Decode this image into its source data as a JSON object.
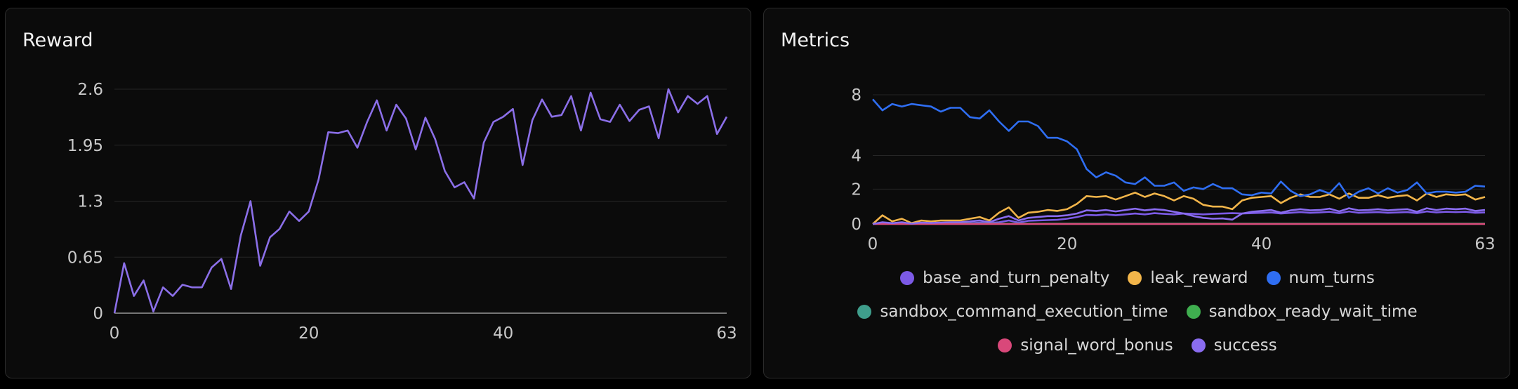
{
  "colors": {
    "grid": "#262626",
    "axis": "#9a9a9a",
    "tick_text": "#c9c9c9",
    "reward_line": "#8b6fe8"
  },
  "chart_data": [
    {
      "type": "line",
      "title": "Reward",
      "xlabel": "",
      "ylabel": "",
      "x_ticks": [
        "0",
        "20",
        "40",
        "63"
      ],
      "y_ticks": [
        "0",
        "0.65",
        "1.3",
        "1.95",
        "2.6"
      ],
      "xlim": [
        0,
        63
      ],
      "ylim": [
        0,
        2.6
      ],
      "grid": true,
      "series": [
        {
          "color": "#8b6fe8",
          "values": [
            0,
            0.58,
            0.2,
            0.38,
            0.02,
            0.3,
            0.2,
            0.33,
            0.3,
            0.3,
            0.53,
            0.63,
            0.28,
            0.9,
            1.3,
            0.55,
            0.88,
            0.98,
            1.18,
            1.07,
            1.18,
            1.55,
            2.1,
            2.09,
            2.12,
            1.92,
            2.22,
            2.47,
            2.12,
            2.42,
            2.26,
            1.9,
            2.27,
            2.02,
            1.65,
            1.46,
            1.52,
            1.33,
            1.98,
            2.22,
            2.28,
            2.37,
            1.72,
            2.24,
            2.48,
            2.28,
            2.3,
            2.52,
            2.12,
            2.56,
            2.25,
            2.22,
            2.42,
            2.23,
            2.36,
            2.4,
            2.03,
            2.6,
            2.33,
            2.52,
            2.43,
            2.52,
            2.08,
            2.28
          ]
        }
      ]
    },
    {
      "type": "line",
      "title": "Metrics",
      "xlabel": "",
      "ylabel": "",
      "x_ticks": [
        "0",
        "20",
        "40",
        "63"
      ],
      "y_ticks": [
        "0",
        "2",
        "4",
        "8"
      ],
      "y_scale": "symlog",
      "xlim": [
        0,
        63
      ],
      "ylim": [
        0,
        8
      ],
      "grid": true,
      "legend_position": "bottom",
      "legend_rows": [
        [
          "base_and_turn_penalty",
          "leak_reward",
          "num_turns"
        ],
        [
          "sandbox_command_execution_time",
          "sandbox_ready_wait_time"
        ],
        [
          "signal_word_bonus",
          "success"
        ]
      ],
      "series": [
        {
          "name": "base_and_turn_penalty",
          "color": "#7c5ae6",
          "values": [
            0,
            0.05,
            0.02,
            0.06,
            0.02,
            0.04,
            0.05,
            0.03,
            0.04,
            0.04,
            0.05,
            0.08,
            0.06,
            0.1,
            0.2,
            0.08,
            0.18,
            0.2,
            0.22,
            0.24,
            0.3,
            0.4,
            0.52,
            0.5,
            0.55,
            0.5,
            0.55,
            0.6,
            0.55,
            0.62,
            0.58,
            0.55,
            0.6,
            0.58,
            0.55,
            0.58,
            0.6,
            0.62,
            0.6,
            0.62,
            0.64,
            0.66,
            0.6,
            0.64,
            0.68,
            0.64,
            0.66,
            0.7,
            0.62,
            0.72,
            0.64,
            0.66,
            0.68,
            0.64,
            0.66,
            0.68,
            0.62,
            0.72,
            0.66,
            0.7,
            0.68,
            0.7,
            0.64,
            0.66
          ]
        },
        {
          "name": "leak_reward",
          "color": "#f2b54a",
          "values": [
            0,
            0.5,
            0.15,
            0.3,
            0.05,
            0.2,
            0.15,
            0.2,
            0.2,
            0.2,
            0.3,
            0.4,
            0.2,
            0.65,
            0.95,
            0.35,
            0.65,
            0.7,
            0.8,
            0.75,
            0.85,
            1.15,
            1.6,
            1.55,
            1.6,
            1.4,
            1.6,
            1.8,
            1.55,
            1.75,
            1.6,
            1.35,
            1.6,
            1.45,
            1.1,
            1.0,
            1.0,
            0.85,
            1.35,
            1.5,
            1.55,
            1.6,
            1.2,
            1.5,
            1.7,
            1.55,
            1.55,
            1.7,
            1.45,
            1.75,
            1.5,
            1.5,
            1.65,
            1.5,
            1.6,
            1.65,
            1.35,
            1.75,
            1.55,
            1.7,
            1.65,
            1.7,
            1.4,
            1.55
          ]
        },
        {
          "name": "num_turns",
          "color": "#2f6ef2",
          "values": [
            7.6,
            6.7,
            7.2,
            7.0,
            7.2,
            7.1,
            7.0,
            6.6,
            6.9,
            6.9,
            6.2,
            6.1,
            6.7,
            5.9,
            5.3,
            5.9,
            5.9,
            5.6,
            4.9,
            4.9,
            4.7,
            4.3,
            3.2,
            2.7,
            3.0,
            2.8,
            2.4,
            2.3,
            2.7,
            2.2,
            2.2,
            2.4,
            1.9,
            2.1,
            2.0,
            2.3,
            2.05,
            2.05,
            1.7,
            1.65,
            1.8,
            1.75,
            2.45,
            1.9,
            1.6,
            1.7,
            1.95,
            1.75,
            2.35,
            1.5,
            1.85,
            2.05,
            1.75,
            2.05,
            1.8,
            1.95,
            2.4,
            1.75,
            1.85,
            1.85,
            1.8,
            1.85,
            2.2,
            2.15
          ]
        },
        {
          "name": "sandbox_command_execution_time",
          "color": "#3f9e8c",
          "values": [
            0.02,
            0.02,
            0.02,
            0.02,
            0.02,
            0.02,
            0.02,
            0.02,
            0.02,
            0.02,
            0.02,
            0.02,
            0.02,
            0.02,
            0.02,
            0.02,
            0.02,
            0.02,
            0.02,
            0.02,
            0.02,
            0.02,
            0.02,
            0.02,
            0.02,
            0.02,
            0.02,
            0.02,
            0.02,
            0.02,
            0.02,
            0.02,
            0.02,
            0.02,
            0.02,
            0.02,
            0.02,
            0.02,
            0.02,
            0.02,
            0.02,
            0.02,
            0.02,
            0.02,
            0.02,
            0.02,
            0.02,
            0.02,
            0.02,
            0.02,
            0.02,
            0.02,
            0.02,
            0.02,
            0.02,
            0.02,
            0.02,
            0.02,
            0.02,
            0.02,
            0.02,
            0.02,
            0.02,
            0.02
          ]
        },
        {
          "name": "sandbox_ready_wait_time",
          "color": "#3fae4f",
          "values": [
            0.01,
            0.01,
            0.01,
            0.01,
            0.01,
            0.01,
            0.01,
            0.01,
            0.01,
            0.01,
            0.01,
            0.01,
            0.01,
            0.01,
            0.01,
            0.01,
            0.01,
            0.01,
            0.01,
            0.01,
            0.01,
            0.01,
            0.01,
            0.01,
            0.01,
            0.01,
            0.01,
            0.01,
            0.01,
            0.01,
            0.01,
            0.01,
            0.01,
            0.01,
            0.01,
            0.01,
            0.01,
            0.01,
            0.01,
            0.01,
            0.01,
            0.01,
            0.01,
            0.01,
            0.01,
            0.01,
            0.01,
            0.01,
            0.01,
            0.01,
            0.01,
            0.01,
            0.01,
            0.01,
            0.01,
            0.01,
            0.01,
            0.01,
            0.01,
            0.01,
            0.01,
            0.01,
            0.01,
            0.01
          ]
        },
        {
          "name": "signal_word_bonus",
          "color": "#d9487a",
          "values": [
            0,
            0,
            0,
            0,
            0,
            0,
            0,
            0,
            0,
            0,
            0,
            0,
            0,
            0,
            0,
            0,
            0,
            0,
            0,
            0,
            0,
            0,
            0,
            0,
            0,
            0,
            0,
            0,
            0,
            0,
            0,
            0,
            0,
            0,
            0,
            0,
            0,
            0,
            0,
            0,
            0,
            0,
            0,
            0,
            0,
            0,
            0,
            0,
            0,
            0,
            0,
            0,
            0,
            0,
            0,
            0,
            0,
            0,
            0,
            0,
            0,
            0,
            0,
            0
          ]
        },
        {
          "name": "success",
          "color": "#8a6cf0",
          "values": [
            0,
            0.1,
            0.05,
            0.1,
            0.02,
            0.08,
            0.06,
            0.08,
            0.1,
            0.1,
            0.15,
            0.2,
            0.1,
            0.3,
            0.45,
            0.2,
            0.35,
            0.4,
            0.45,
            0.45,
            0.5,
            0.6,
            0.78,
            0.75,
            0.8,
            0.72,
            0.8,
            0.88,
            0.78,
            0.85,
            0.8,
            0.7,
            0.6,
            0.45,
            0.35,
            0.3,
            0.32,
            0.25,
            0.6,
            0.7,
            0.75,
            0.8,
            0.65,
            0.78,
            0.85,
            0.78,
            0.8,
            0.88,
            0.72,
            0.9,
            0.78,
            0.8,
            0.85,
            0.78,
            0.82,
            0.85,
            0.7,
            0.9,
            0.8,
            0.88,
            0.85,
            0.88,
            0.75,
            0.8
          ]
        }
      ]
    }
  ]
}
